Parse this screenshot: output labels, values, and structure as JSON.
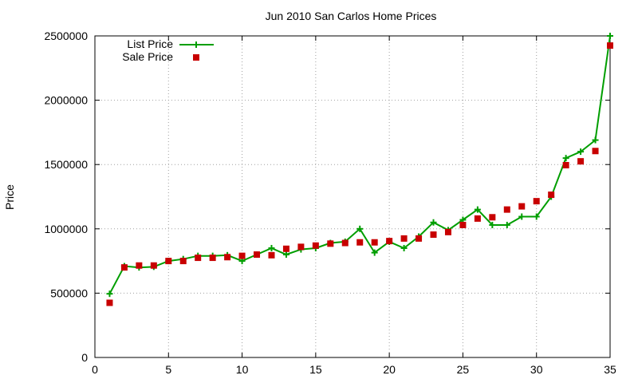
{
  "chart_data": {
    "type": "line",
    "title": "Jun 2010 San Carlos Home Prices",
    "xlabel": "",
    "ylabel": "Price",
    "xlim": [
      0,
      35
    ],
    "ylim": [
      0,
      2500000
    ],
    "xticks": [
      0,
      5,
      10,
      15,
      20,
      25,
      30,
      35
    ],
    "yticks": [
      0,
      500000,
      1000000,
      1500000,
      2000000,
      2500000
    ],
    "grid": true,
    "legend_position": "top-left",
    "x": [
      1,
      2,
      3,
      4,
      5,
      6,
      7,
      8,
      9,
      10,
      11,
      12,
      13,
      14,
      15,
      16,
      17,
      18,
      19,
      20,
      21,
      22,
      23,
      24,
      25,
      26,
      27,
      28,
      29,
      30,
      31,
      32,
      33,
      34,
      35
    ],
    "series": [
      {
        "name": "List Price",
        "style": "line-with-plus-markers",
        "color": "#009e00",
        "values": [
          495000,
          710000,
          700000,
          705000,
          750000,
          765000,
          790000,
          790000,
          795000,
          750000,
          800000,
          850000,
          800000,
          840000,
          850000,
          890000,
          900000,
          1000000,
          815000,
          900000,
          850000,
          940000,
          1050000,
          990000,
          1070000,
          1150000,
          1030000,
          1030000,
          1095000,
          1095000,
          1250000,
          1550000,
          1600000,
          1690000,
          2500000
        ]
      },
      {
        "name": "Sale Price",
        "style": "square-markers",
        "color": "#c80000",
        "values": [
          425000,
          700000,
          715000,
          715000,
          750000,
          750000,
          775000,
          775000,
          780000,
          790000,
          800000,
          795000,
          845000,
          860000,
          870000,
          885000,
          890000,
          895000,
          895000,
          905000,
          925000,
          925000,
          955000,
          975000,
          1030000,
          1080000,
          1090000,
          1150000,
          1175000,
          1215000,
          1265000,
          1495000,
          1525000,
          1605000,
          2425000
        ]
      }
    ]
  }
}
